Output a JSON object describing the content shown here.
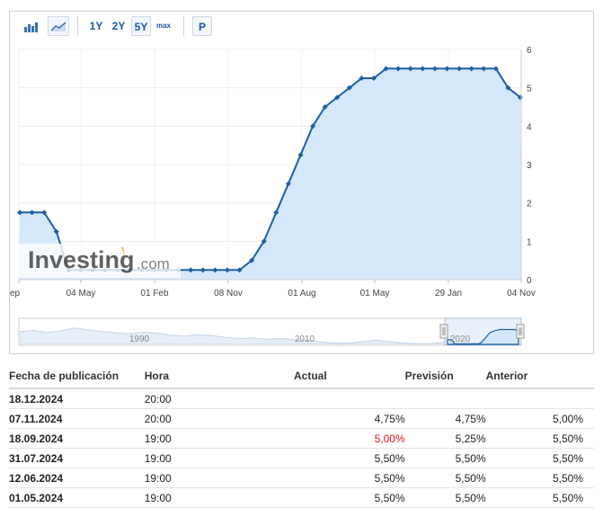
{
  "toolbar": {
    "range_1y": "1Y",
    "range_2y": "2Y",
    "range_5y": "5Y",
    "range_max": "max",
    "p_label": "P",
    "selected_range": "5Y"
  },
  "watermark": {
    "brand": "Investing",
    "suffix": ".com"
  },
  "navigator": {
    "labels": [
      "1990",
      "2010",
      "2020"
    ]
  },
  "colors": {
    "line": "#1f5fa3",
    "fill": "#d5e8fb",
    "negative": "#e0141e"
  },
  "chart_data": {
    "type": "area",
    "x_tick_labels": [
      "ep",
      "04 May",
      "01 Feb",
      "08 Nov",
      "01 Aug",
      "01 May",
      "29 Jan",
      "04 Nov"
    ],
    "ylim": [
      0,
      6
    ],
    "y_ticks": [
      "0",
      "1",
      "2",
      "3",
      "4",
      "5",
      "6"
    ],
    "grid": true,
    "series": [
      {
        "values": [
          1.75,
          1.75,
          1.75,
          1.25,
          0.25,
          0.25,
          0.25,
          0.25,
          0.25,
          0.25,
          0.25,
          0.25,
          0.25,
          0.25,
          0.25,
          0.25,
          0.25,
          0.25,
          0.25,
          0.5,
          1.0,
          1.75,
          2.5,
          3.25,
          4.0,
          4.5,
          4.75,
          5.0,
          5.25,
          5.25,
          5.5,
          5.5,
          5.5,
          5.5,
          5.5,
          5.5,
          5.5,
          5.5,
          5.5,
          5.5,
          5.0,
          4.75
        ]
      }
    ]
  },
  "table": {
    "headers": {
      "date": "Fecha de publicación",
      "time": "Hora",
      "actual": "Actual",
      "forecast": "Previsión",
      "previous": "Anterior"
    },
    "rows": [
      {
        "date": "18.12.2024",
        "time": "20:00",
        "actual": "",
        "forecast": "",
        "previous": ""
      },
      {
        "date": "07.11.2024",
        "time": "20:00",
        "actual": "4,75%",
        "forecast": "4,75%",
        "previous": "5,00%"
      },
      {
        "date": "18.09.2024",
        "time": "19:00",
        "actual": "5,00%",
        "forecast": "5,25%",
        "previous": "5,50%"
      },
      {
        "date": "31.07.2024",
        "time": "19:00",
        "actual": "5,50%",
        "forecast": "5,50%",
        "previous": "5,50%"
      },
      {
        "date": "12.06.2024",
        "time": "19:00",
        "actual": "5,50%",
        "forecast": "5,50%",
        "previous": "5,50%"
      },
      {
        "date": "01.05.2024",
        "time": "19:00",
        "actual": "5,50%",
        "forecast": "5,50%",
        "previous": "5,50%"
      }
    ]
  }
}
